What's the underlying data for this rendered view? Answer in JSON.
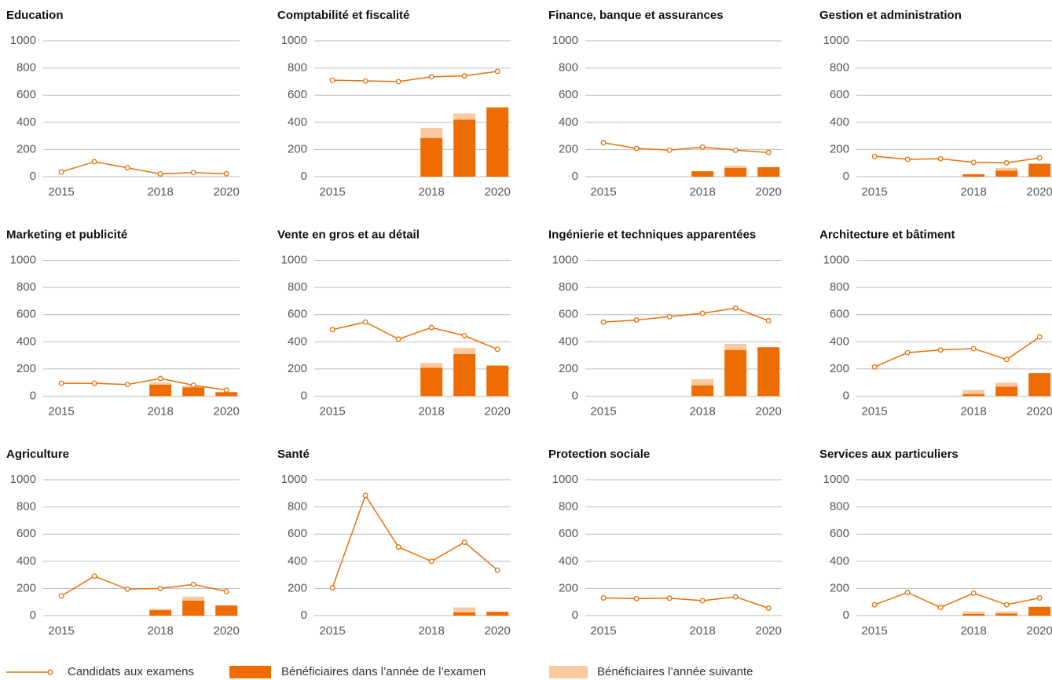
{
  "chart_data": [
    {
      "type": "combo",
      "title": "Education",
      "x": [
        2015,
        2016,
        2017,
        2018,
        2019,
        2020
      ],
      "xlim": [
        2014.45,
        2020.4
      ],
      "xticks": [
        2015,
        2018,
        2020
      ],
      "ylim": [
        0,
        1000
      ],
      "yticks": [
        0,
        200,
        400,
        600,
        800,
        1000
      ],
      "grid": true,
      "series": [
        {
          "name": "Candidats aux examens",
          "type": "line",
          "color": "#e8700a",
          "values": [
            35,
            110,
            65,
            20,
            30,
            22
          ]
        },
        {
          "name": "Bénéficiaires dans l’année de l’examen",
          "type": "bar",
          "color": "#ee6c00",
          "values": [
            null,
            null,
            null,
            null,
            null,
            null
          ]
        },
        {
          "name": "Bénéficiaires l’année suivante",
          "type": "bar",
          "color": "#fbc9a0",
          "values": [
            null,
            null,
            null,
            null,
            null,
            null
          ]
        }
      ]
    },
    {
      "type": "combo",
      "title": "Comptabilité et fiscalité",
      "x": [
        2015,
        2016,
        2017,
        2018,
        2019,
        2020
      ],
      "xlim": [
        2014.45,
        2020.4
      ],
      "xticks": [
        2015,
        2018,
        2020
      ],
      "ylim": [
        0,
        1000
      ],
      "yticks": [
        0,
        200,
        400,
        600,
        800,
        1000
      ],
      "grid": true,
      "series": [
        {
          "name": "Candidats aux examens",
          "type": "line",
          "color": "#e8700a",
          "values": [
            710,
            705,
            700,
            735,
            742,
            775
          ]
        },
        {
          "name": "Bénéficiaires dans l’année de l’examen",
          "type": "bar",
          "color": "#ee6c00",
          "values": [
            null,
            null,
            null,
            285,
            420,
            510
          ]
        },
        {
          "name": "Bénéficiaires l’année suivante",
          "type": "bar",
          "color": "#fbc9a0",
          "values": [
            null,
            null,
            null,
            75,
            45,
            null
          ]
        }
      ]
    },
    {
      "type": "combo",
      "title": "Finance, banque et assurances",
      "x": [
        2015,
        2016,
        2017,
        2018,
        2019,
        2020
      ],
      "xlim": [
        2014.45,
        2020.4
      ],
      "xticks": [
        2015,
        2018,
        2020
      ],
      "ylim": [
        0,
        1000
      ],
      "yticks": [
        0,
        200,
        400,
        600,
        800,
        1000
      ],
      "grid": true,
      "series": [
        {
          "name": "Candidats aux examens",
          "type": "line",
          "color": "#e8700a",
          "values": [
            250,
            208,
            195,
            218,
            195,
            178
          ]
        },
        {
          "name": "Bénéficiaires dans l’année de l’examen",
          "type": "bar",
          "color": "#ee6c00",
          "values": [
            null,
            null,
            null,
            40,
            65,
            70
          ]
        },
        {
          "name": "Bénéficiaires l’année suivante",
          "type": "bar",
          "color": "#fbc9a0",
          "values": [
            null,
            null,
            null,
            null,
            15,
            null
          ]
        }
      ]
    },
    {
      "type": "combo",
      "title": "Gestion et administration",
      "x": [
        2015,
        2016,
        2017,
        2018,
        2019,
        2020
      ],
      "xlim": [
        2014.45,
        2020.4
      ],
      "xticks": [
        2015,
        2018,
        2020
      ],
      "ylim": [
        0,
        1000
      ],
      "yticks": [
        0,
        200,
        400,
        600,
        800,
        1000
      ],
      "grid": true,
      "series": [
        {
          "name": "Candidats aux examens",
          "type": "line",
          "color": "#e8700a",
          "values": [
            150,
            128,
            132,
            105,
            102,
            138
          ]
        },
        {
          "name": "Bénéficiaires dans l’année de l’examen",
          "type": "bar",
          "color": "#ee6c00",
          "values": [
            null,
            null,
            null,
            18,
            45,
            95
          ]
        },
        {
          "name": "Bénéficiaires l’année suivante",
          "type": "bar",
          "color": "#fbc9a0",
          "values": [
            null,
            null,
            null,
            null,
            20,
            null
          ]
        }
      ]
    },
    {
      "type": "combo",
      "title": "Marketing et publicité",
      "x": [
        2015,
        2016,
        2017,
        2018,
        2019,
        2020
      ],
      "xlim": [
        2014.45,
        2020.4
      ],
      "xticks": [
        2015,
        2018,
        2020
      ],
      "ylim": [
        0,
        1000
      ],
      "yticks": [
        0,
        200,
        400,
        600,
        800,
        1000
      ],
      "grid": true,
      "series": [
        {
          "name": "Candidats aux examens",
          "type": "line",
          "color": "#e8700a",
          "values": [
            95,
            95,
            85,
            130,
            80,
            45
          ]
        },
        {
          "name": "Bénéficiaires dans l’année de l’examen",
          "type": "bar",
          "color": "#ee6c00",
          "values": [
            null,
            null,
            null,
            85,
            65,
            30
          ]
        },
        {
          "name": "Bénéficiaires l’année suivante",
          "type": "bar",
          "color": "#fbc9a0",
          "values": [
            null,
            null,
            null,
            15,
            10,
            null
          ]
        }
      ]
    },
    {
      "type": "combo",
      "title": "Vente en gros et au détail",
      "x": [
        2015,
        2016,
        2017,
        2018,
        2019,
        2020
      ],
      "xlim": [
        2014.45,
        2020.4
      ],
      "xticks": [
        2015,
        2018,
        2020
      ],
      "ylim": [
        0,
        1000
      ],
      "yticks": [
        0,
        200,
        400,
        600,
        800,
        1000
      ],
      "grid": true,
      "series": [
        {
          "name": "Candidats aux examens",
          "type": "line",
          "color": "#e8700a",
          "values": [
            490,
            545,
            420,
            505,
            445,
            345
          ]
        },
        {
          "name": "Bénéficiaires dans l’année de l’examen",
          "type": "bar",
          "color": "#ee6c00",
          "values": [
            null,
            null,
            null,
            210,
            310,
            225
          ]
        },
        {
          "name": "Bénéficiaires l’année suivante",
          "type": "bar",
          "color": "#fbc9a0",
          "values": [
            null,
            null,
            null,
            35,
            45,
            null
          ]
        }
      ]
    },
    {
      "type": "combo",
      "title": "Ingénierie et techniques apparentées",
      "x": [
        2015,
        2016,
        2017,
        2018,
        2019,
        2020
      ],
      "xlim": [
        2014.45,
        2020.4
      ],
      "xticks": [
        2015,
        2018,
        2020
      ],
      "ylim": [
        0,
        1000
      ],
      "yticks": [
        0,
        200,
        400,
        600,
        800,
        1000
      ],
      "grid": true,
      "series": [
        {
          "name": "Candidats aux examens",
          "type": "line",
          "color": "#e8700a",
          "values": [
            545,
            560,
            585,
            610,
            648,
            555
          ]
        },
        {
          "name": "Bénéficiaires dans l’année de l’examen",
          "type": "bar",
          "color": "#ee6c00",
          "values": [
            null,
            null,
            null,
            80,
            340,
            360
          ]
        },
        {
          "name": "Bénéficiaires l’année suivante",
          "type": "bar",
          "color": "#fbc9a0",
          "values": [
            null,
            null,
            null,
            45,
            45,
            null
          ]
        }
      ]
    },
    {
      "type": "combo",
      "title": "Architecture et bâtiment",
      "x": [
        2015,
        2016,
        2017,
        2018,
        2019,
        2020
      ],
      "xlim": [
        2014.45,
        2020.4
      ],
      "xticks": [
        2015,
        2018,
        2020
      ],
      "ylim": [
        0,
        1000
      ],
      "yticks": [
        0,
        200,
        400,
        600,
        800,
        1000
      ],
      "grid": true,
      "series": [
        {
          "name": "Candidats aux examens",
          "type": "line",
          "color": "#e8700a",
          "values": [
            215,
            320,
            340,
            350,
            270,
            435
          ]
        },
        {
          "name": "Bénéficiaires dans l’année de l’examen",
          "type": "bar",
          "color": "#ee6c00",
          "values": [
            null,
            null,
            null,
            15,
            70,
            170
          ]
        },
        {
          "name": "Bénéficiaires l’année suivante",
          "type": "bar",
          "color": "#fbc9a0",
          "values": [
            null,
            null,
            null,
            30,
            30,
            null
          ]
        }
      ]
    },
    {
      "type": "combo",
      "title": "Agriculture",
      "x": [
        2015,
        2016,
        2017,
        2018,
        2019,
        2020
      ],
      "xlim": [
        2014.45,
        2020.4
      ],
      "xticks": [
        2015,
        2018,
        2020
      ],
      "ylim": [
        0,
        1000
      ],
      "yticks": [
        0,
        200,
        400,
        600,
        800,
        1000
      ],
      "grid": true,
      "series": [
        {
          "name": "Candidats aux examens",
          "type": "line",
          "color": "#e8700a",
          "values": [
            145,
            290,
            195,
            200,
            230,
            178
          ]
        },
        {
          "name": "Bénéficiaires dans l’année de l’examen",
          "type": "bar",
          "color": "#ee6c00",
          "values": [
            null,
            null,
            null,
            40,
            110,
            75
          ]
        },
        {
          "name": "Bénéficiaires l’année suivante",
          "type": "bar",
          "color": "#fbc9a0",
          "values": [
            null,
            null,
            null,
            10,
            30,
            null
          ]
        }
      ]
    },
    {
      "type": "combo",
      "title": "Santé",
      "x": [
        2015,
        2016,
        2017,
        2018,
        2019,
        2020
      ],
      "xlim": [
        2014.45,
        2020.4
      ],
      "xticks": [
        2015,
        2018,
        2020
      ],
      "ylim": [
        0,
        1000
      ],
      "yticks": [
        0,
        200,
        400,
        600,
        800,
        1000
      ],
      "grid": true,
      "series": [
        {
          "name": "Candidats aux examens",
          "type": "line",
          "color": "#e8700a",
          "values": [
            205,
            885,
            505,
            400,
            540,
            335
          ]
        },
        {
          "name": "Bénéficiaires dans l’année de l’examen",
          "type": "bar",
          "color": "#ee6c00",
          "values": [
            null,
            null,
            null,
            null,
            25,
            28
          ]
        },
        {
          "name": "Bénéficiaires l’année suivante",
          "type": "bar",
          "color": "#fbc9a0",
          "values": [
            null,
            null,
            null,
            null,
            35,
            null
          ]
        }
      ]
    },
    {
      "type": "combo",
      "title": "Protection sociale",
      "x": [
        2015,
        2016,
        2017,
        2018,
        2019,
        2020
      ],
      "xlim": [
        2014.45,
        2020.4
      ],
      "xticks": [
        2015,
        2018,
        2020
      ],
      "ylim": [
        0,
        1000
      ],
      "yticks": [
        0,
        200,
        400,
        600,
        800,
        1000
      ],
      "grid": true,
      "series": [
        {
          "name": "Candidats aux examens",
          "type": "line",
          "color": "#e8700a",
          "values": [
            130,
            125,
            128,
            110,
            138,
            55
          ]
        },
        {
          "name": "Bénéficiaires dans l’année de l’examen",
          "type": "bar",
          "color": "#ee6c00",
          "values": [
            null,
            null,
            null,
            null,
            null,
            null
          ]
        },
        {
          "name": "Bénéficiaires l’année suivante",
          "type": "bar",
          "color": "#fbc9a0",
          "values": [
            null,
            null,
            null,
            null,
            null,
            null
          ]
        }
      ]
    },
    {
      "type": "combo",
      "title": "Services aux particuliers",
      "x": [
        2015,
        2016,
        2017,
        2018,
        2019,
        2020
      ],
      "xlim": [
        2014.45,
        2020.4
      ],
      "xticks": [
        2015,
        2018,
        2020
      ],
      "ylim": [
        0,
        1000
      ],
      "yticks": [
        0,
        200,
        400,
        600,
        800,
        1000
      ],
      "grid": true,
      "series": [
        {
          "name": "Candidats aux examens",
          "type": "line",
          "color": "#e8700a",
          "values": [
            80,
            170,
            60,
            165,
            80,
            130
          ]
        },
        {
          "name": "Bénéficiaires dans l’année de l’examen",
          "type": "bar",
          "color": "#ee6c00",
          "values": [
            null,
            null,
            null,
            12,
            15,
            65
          ]
        },
        {
          "name": "Bénéficiaires l’année suivante",
          "type": "bar",
          "color": "#fbc9a0",
          "values": [
            null,
            null,
            null,
            18,
            15,
            null
          ]
        }
      ]
    }
  ]
}
